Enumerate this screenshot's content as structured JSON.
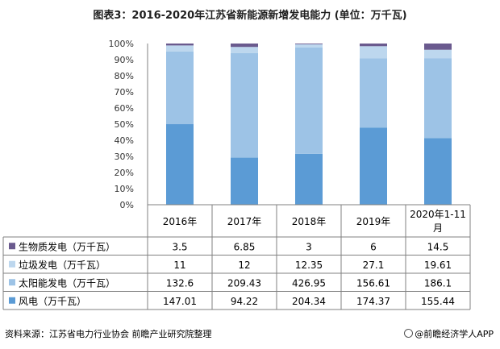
{
  "title": "图表3：2016-2020年江苏省新能源新增发电能力 (单位：万千瓦)",
  "source": "资料来源：江苏省电力行业协会 前瞻产业研究院整理",
  "brand": "@前瞻经济学人APP",
  "colors": {
    "wind": "#5b9bd5",
    "solar": "#9dc3e6",
    "garbage": "#bdd7ee",
    "bio": "#6a5a8e",
    "axis": "#808080",
    "grid": "#d0d0d0"
  },
  "chart_data": {
    "type": "bar",
    "stacked": "percent",
    "categories": [
      "2016年",
      "2017年",
      "2018年",
      "2019年",
      "2020年1-11月"
    ],
    "yticks": [
      "0%",
      "10%",
      "20%",
      "30%",
      "40%",
      "50%",
      "60%",
      "70%",
      "80%",
      "90%",
      "100%"
    ],
    "ylim": [
      0,
      100
    ],
    "legend_placement": "data-table",
    "series": [
      {
        "name": "生物质发电（万千瓦）",
        "key": "bio",
        "labels": [
          "3.5",
          "6.85",
          "3",
          "6",
          "14.5"
        ],
        "values": [
          3.5,
          6.85,
          3,
          6,
          14.5
        ]
      },
      {
        "name": "垃圾发电（万千瓦）",
        "key": "garbage",
        "labels": [
          "11",
          "12",
          "12.35",
          "27.1",
          "19.61"
        ],
        "values": [
          11,
          12,
          12.35,
          27.1,
          19.61
        ]
      },
      {
        "name": "太阳能发电（万千瓦）",
        "key": "solar",
        "labels": [
          "132.6",
          "209.43",
          "426.95",
          "156.61",
          "186.1"
        ],
        "values": [
          132.6,
          209.43,
          426.95,
          156.61,
          186.1
        ]
      },
      {
        "name": "风电（万千瓦）",
        "key": "wind",
        "labels": [
          "147.01",
          "94.22",
          "204.34",
          "174.37",
          "155.44"
        ],
        "values": [
          147.01,
          94.22,
          204.34,
          174.37,
          155.44
        ]
      }
    ]
  }
}
